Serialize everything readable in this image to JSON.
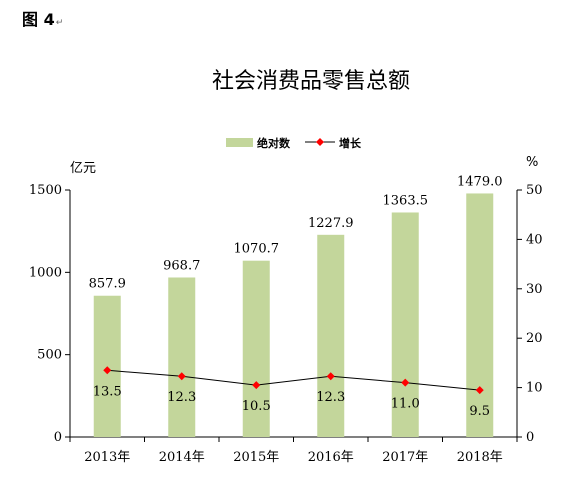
{
  "figure_label": "图 4",
  "figure_mark": "↵",
  "chart_data": {
    "type": "bar",
    "title": "社会消费品零售总额",
    "categories": [
      "2013年",
      "2014年",
      "2015年",
      "2016年",
      "2017年",
      "2018年"
    ],
    "series": [
      {
        "name": "绝对数",
        "type": "bar",
        "axis": "left",
        "values": [
          857.9,
          968.7,
          1070.7,
          1227.9,
          1363.5,
          1479.0
        ],
        "labels": [
          "857.9",
          "968.7",
          "1070.7",
          "1227.9",
          "1363.5",
          "1479.0"
        ]
      },
      {
        "name": "增长",
        "type": "line",
        "axis": "right",
        "values": [
          13.5,
          12.3,
          10.5,
          12.3,
          11.0,
          9.5
        ],
        "labels": [
          "13.5",
          "12.3",
          "10.5",
          "12.3",
          "11.0",
          "9.5"
        ]
      }
    ],
    "y_left": {
      "label": "亿元",
      "min": 0,
      "max": 1500,
      "ticks": [
        0,
        500,
        1000,
        1500
      ]
    },
    "y_right": {
      "label": "%",
      "min": 0,
      "max": 50,
      "ticks": [
        0,
        10,
        20,
        30,
        40,
        50
      ]
    },
    "legend_position": "top-center",
    "grid": false,
    "colors": {
      "bar": "#c3d69b",
      "line": "#000000",
      "marker": "#ff0000"
    }
  }
}
